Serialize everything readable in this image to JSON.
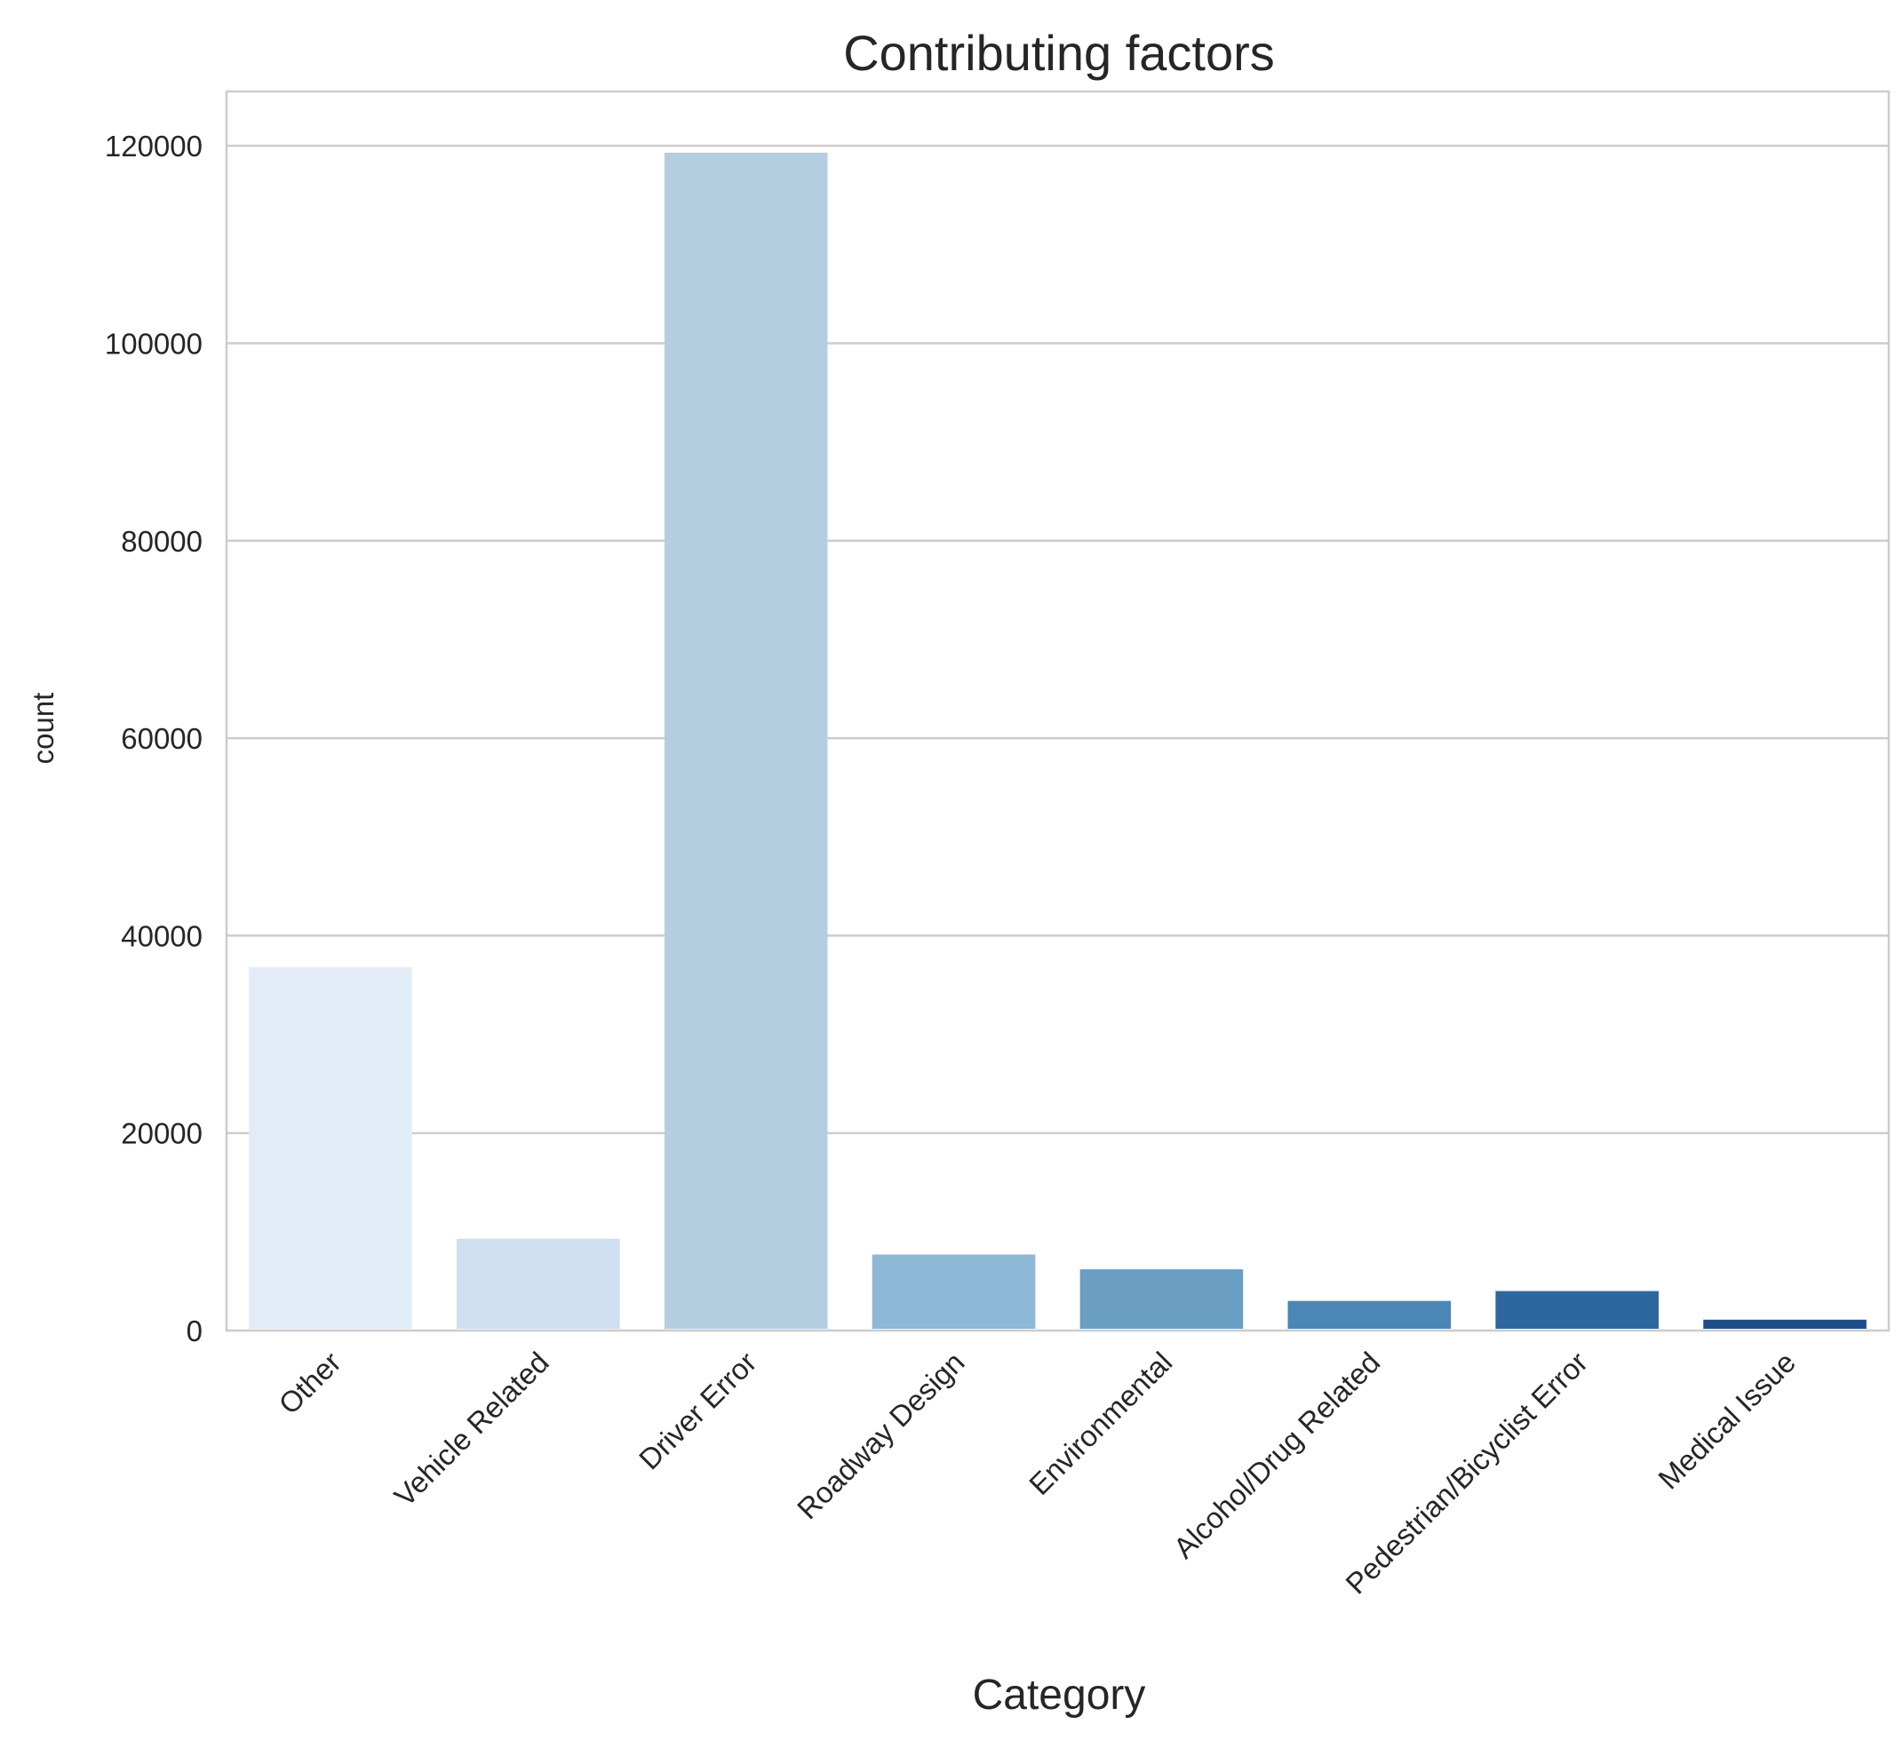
{
  "chart_data": {
    "type": "bar",
    "title": "Contributing factors",
    "xlabel": "Category",
    "ylabel": "count",
    "categories": [
      "Other",
      "Vehicle Related",
      "Driver Error",
      "Roadway Design",
      "Environmental",
      "Alcohol/Drug Related",
      "Pedestrian/Bicyclist Error",
      "Medical Issue"
    ],
    "values": [
      36800,
      9300,
      119300,
      7700,
      6200,
      3000,
      4000,
      1100
    ],
    "colors": [
      "#e3ecf6",
      "#cddff0",
      "#b3cee0",
      "#8db8d6",
      "#6a9fc3",
      "#4a86b6",
      "#2e679e",
      "#1f4d8a"
    ],
    "yticks": [
      0,
      20000,
      40000,
      60000,
      80000,
      100000,
      120000
    ],
    "ylim": [
      0,
      125500
    ],
    "grid": "y",
    "legend": "none"
  }
}
